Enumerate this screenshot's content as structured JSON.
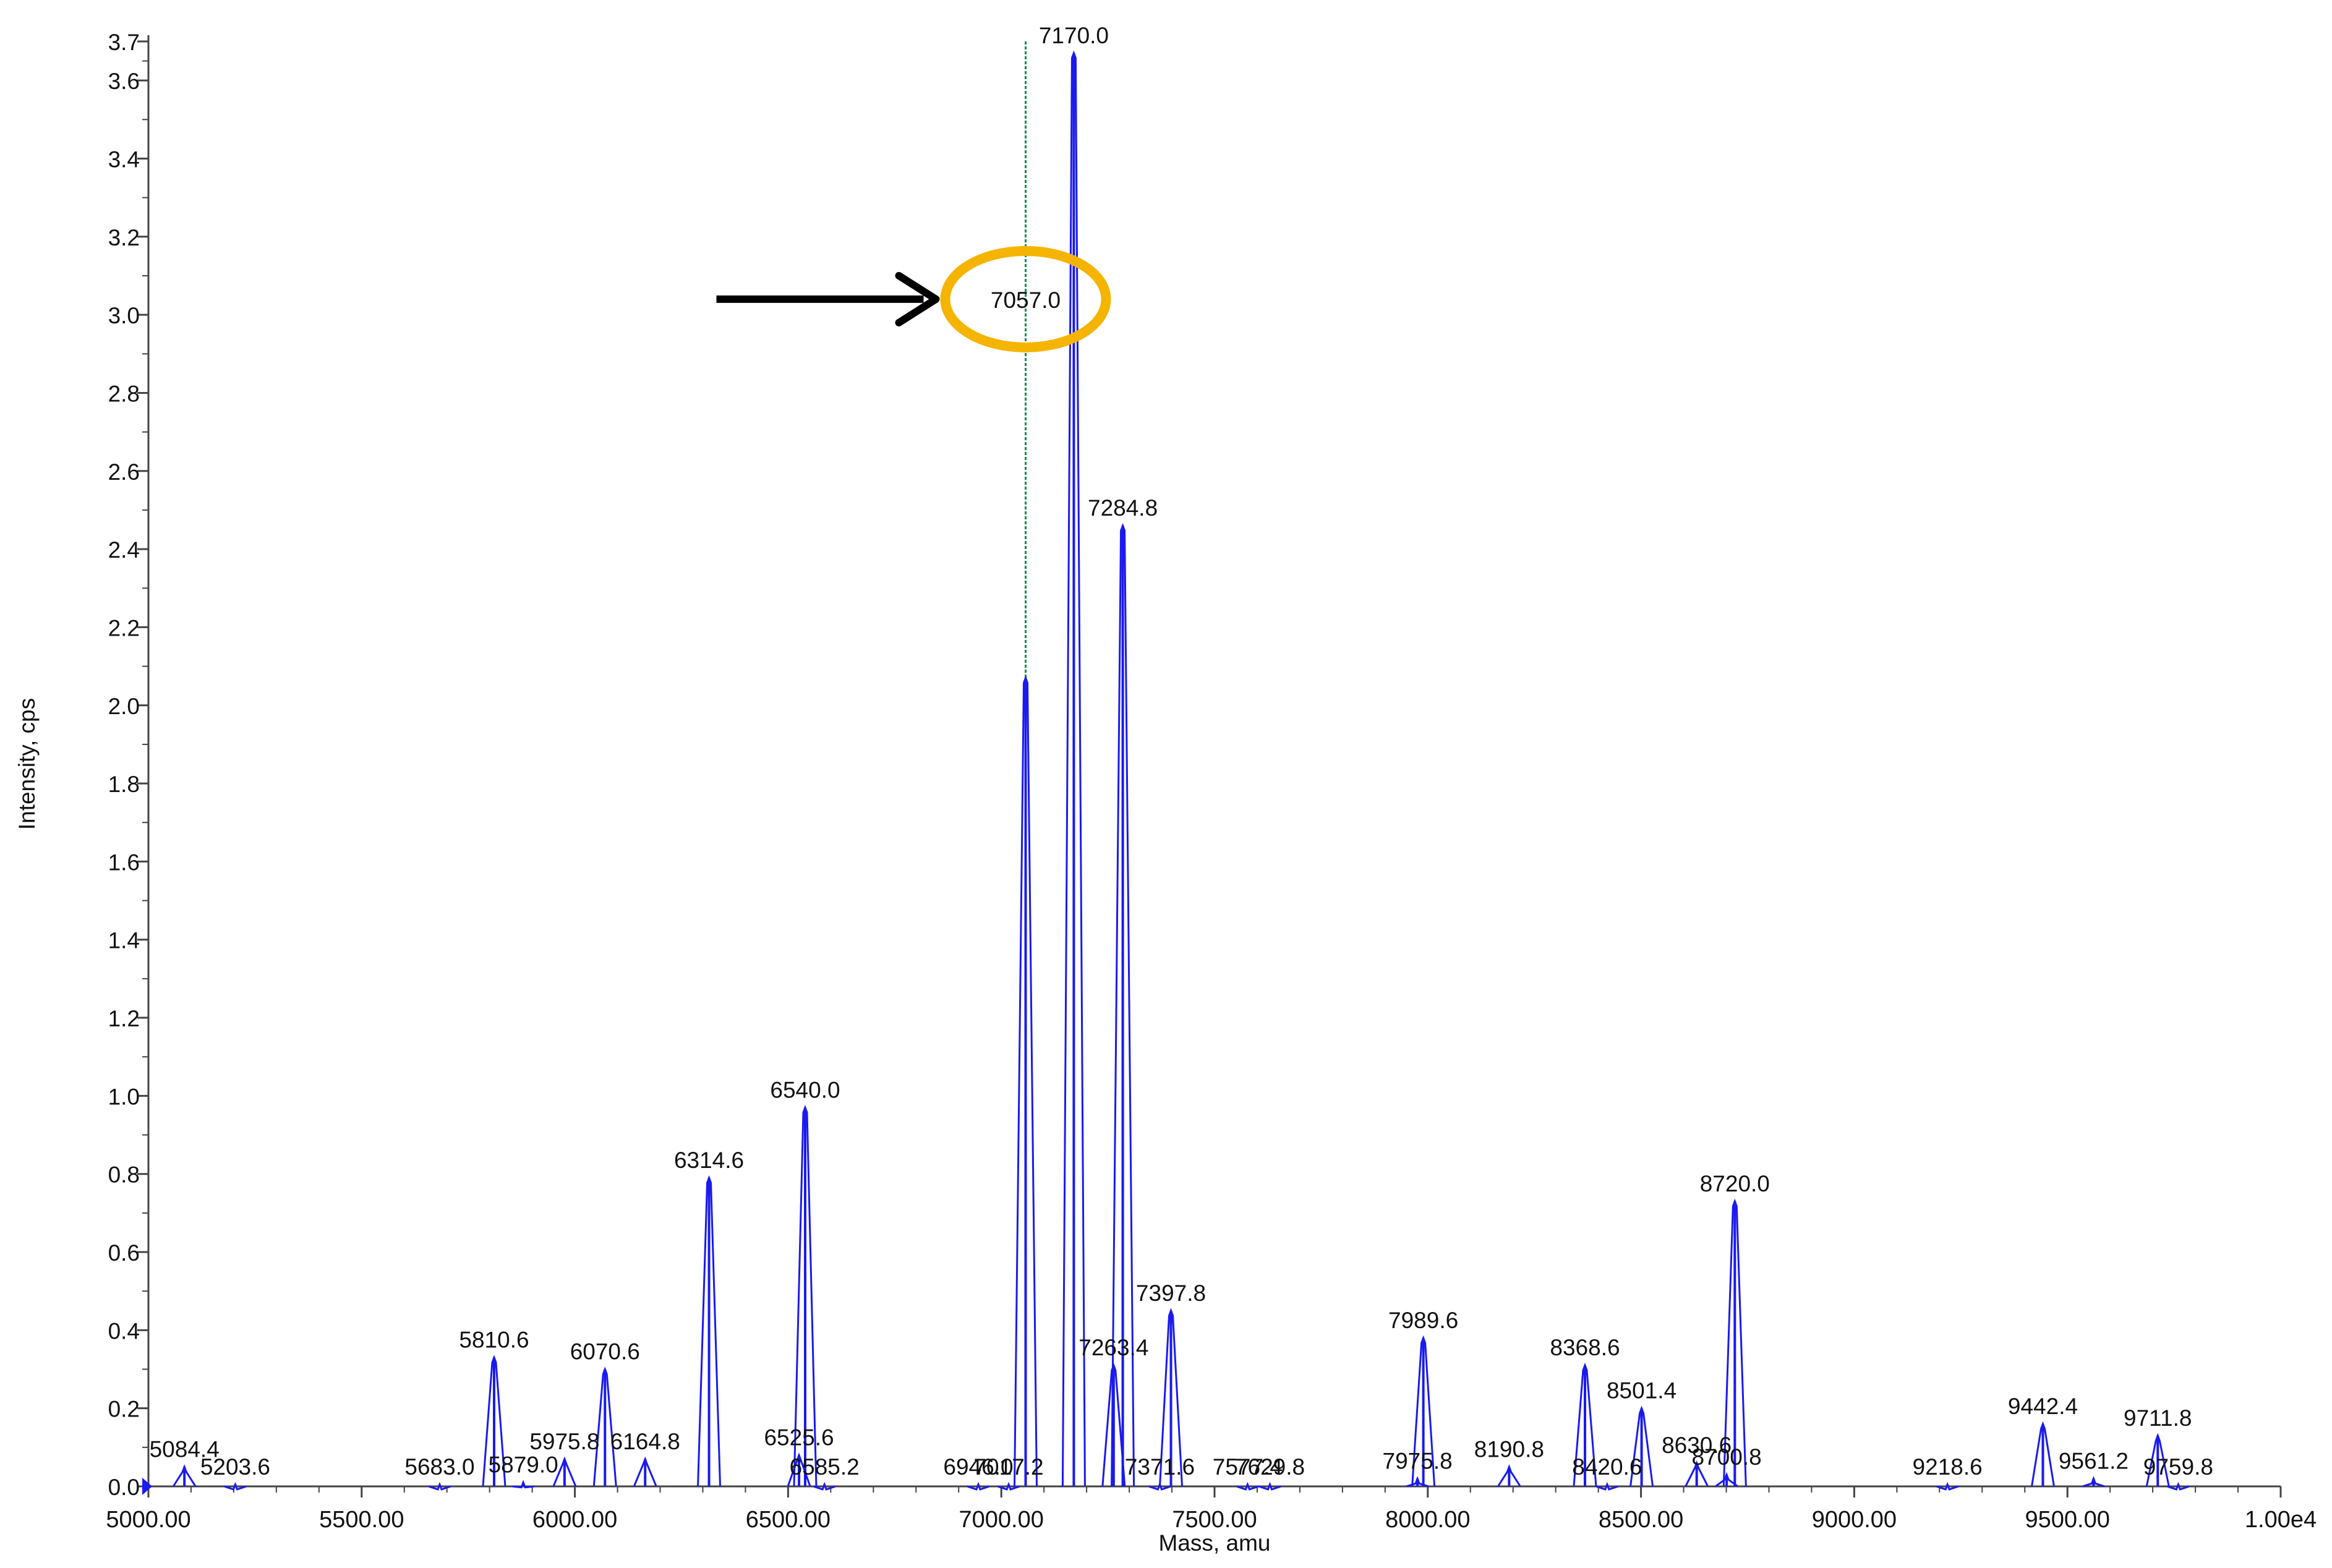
{
  "chart_data": {
    "type": "line",
    "title": "",
    "xlabel": "Mass, amu",
    "ylabel": "Intensity, cps",
    "xlim": [
      5000,
      10000
    ],
    "ylim": [
      0,
      3.7
    ],
    "x_ticks": [
      {
        "value": 5000,
        "label": "5000.00"
      },
      {
        "value": 5500,
        "label": "5500.00"
      },
      {
        "value": 6000,
        "label": "6000.00"
      },
      {
        "value": 6500,
        "label": "6500.00"
      },
      {
        "value": 7000,
        "label": "7000.00"
      },
      {
        "value": 7500,
        "label": "7500.00"
      },
      {
        "value": 8000,
        "label": "8000.00"
      },
      {
        "value": 8500,
        "label": "8500.00"
      },
      {
        "value": 9000,
        "label": "9000.00"
      },
      {
        "value": 9500,
        "label": "9500.00"
      },
      {
        "value": 10000,
        "label": "1.00e4"
      }
    ],
    "y_ticks": [
      {
        "value": 0.0,
        "label": "0.0"
      },
      {
        "value": 0.2,
        "label": "0.2"
      },
      {
        "value": 0.4,
        "label": "0.4"
      },
      {
        "value": 0.6,
        "label": "0.6"
      },
      {
        "value": 0.8,
        "label": "0.8"
      },
      {
        "value": 1.0,
        "label": "1.0"
      },
      {
        "value": 1.2,
        "label": "1.2"
      },
      {
        "value": 1.4,
        "label": "1.4"
      },
      {
        "value": 1.6,
        "label": "1.6"
      },
      {
        "value": 1.8,
        "label": "1.8"
      },
      {
        "value": 2.0,
        "label": "2.0"
      },
      {
        "value": 2.2,
        "label": "2.2"
      },
      {
        "value": 2.4,
        "label": "2.4"
      },
      {
        "value": 2.6,
        "label": "2.6"
      },
      {
        "value": 2.8,
        "label": "2.8"
      },
      {
        "value": 3.0,
        "label": "3.0"
      },
      {
        "value": 3.2,
        "label": "3.2"
      },
      {
        "value": 3.4,
        "label": "3.4"
      },
      {
        "value": 3.6,
        "label": "3.6"
      },
      {
        "value": 3.7,
        "label": "3.7"
      }
    ],
    "series": [
      {
        "color": "#1a1aee",
        "peaks": [
          {
            "mass": 5084.4,
            "intensity": 0.05,
            "label": "5084.4"
          },
          {
            "mass": 5203.6,
            "intensity": 0.005,
            "label": "5203.6"
          },
          {
            "mass": 5683.0,
            "intensity": 0.005,
            "label": "5683.0"
          },
          {
            "mass": 5810.6,
            "intensity": 0.33,
            "label": "5810.6"
          },
          {
            "mass": 5879.0,
            "intensity": 0.01,
            "label": "5879.0"
          },
          {
            "mass": 5975.8,
            "intensity": 0.07,
            "label": "5975.8"
          },
          {
            "mass": 6070.6,
            "intensity": 0.3,
            "label": "6070.6"
          },
          {
            "mass": 6164.8,
            "intensity": 0.07,
            "label": "6164.8"
          },
          {
            "mass": 6314.6,
            "intensity": 0.79,
            "label": "6314.6"
          },
          {
            "mass": 6525.6,
            "intensity": 0.08,
            "label": "6525.6"
          },
          {
            "mass": 6540.0,
            "intensity": 0.97,
            "label": "6540.0"
          },
          {
            "mass": 6585.2,
            "intensity": 0.005,
            "label": "6585.2"
          },
          {
            "mass": 6946.0,
            "intensity": 0.005,
            "label": "6946.0"
          },
          {
            "mass": 7017.2,
            "intensity": 0.005,
            "label": "7017.2"
          },
          {
            "mass": 7057.0,
            "intensity": 2.07,
            "label": "7057.0"
          },
          {
            "mass": 7170.0,
            "intensity": 3.67,
            "label": "7170.0"
          },
          {
            "mass": 7263.4,
            "intensity": 0.31,
            "label": "7263.4"
          },
          {
            "mass": 7284.8,
            "intensity": 2.46,
            "label": "7284.8"
          },
          {
            "mass": 7371.6,
            "intensity": 0.005,
            "label": "7371.6"
          },
          {
            "mass": 7397.8,
            "intensity": 0.45,
            "label": "7397.8"
          },
          {
            "mass": 7577.4,
            "intensity": 0.005,
            "label": "7577.4"
          },
          {
            "mass": 7629.8,
            "intensity": 0.005,
            "label": "7629.8"
          },
          {
            "mass": 7975.8,
            "intensity": 0.02,
            "label": "7975.8"
          },
          {
            "mass": 7989.6,
            "intensity": 0.38,
            "label": "7989.6"
          },
          {
            "mass": 8190.8,
            "intensity": 0.05,
            "label": "8190.8"
          },
          {
            "mass": 8368.6,
            "intensity": 0.31,
            "label": "8368.6"
          },
          {
            "mass": 8420.6,
            "intensity": 0.005,
            "label": "8420.6"
          },
          {
            "mass": 8501.4,
            "intensity": 0.2,
            "label": "8501.4"
          },
          {
            "mass": 8630.6,
            "intensity": 0.06,
            "label": "8630.6"
          },
          {
            "mass": 8700.8,
            "intensity": 0.03,
            "label": "8700.8"
          },
          {
            "mass": 8720.0,
            "intensity": 0.73,
            "label": "8720.0"
          },
          {
            "mass": 9218.6,
            "intensity": 0.005,
            "label": "9218.6"
          },
          {
            "mass": 9442.4,
            "intensity": 0.16,
            "label": "9442.4"
          },
          {
            "mass": 9561.2,
            "intensity": 0.02,
            "label": "9561.2"
          },
          {
            "mass": 9711.8,
            "intensity": 0.13,
            "label": "9711.8"
          },
          {
            "mass": 9759.8,
            "intensity": 0.005,
            "label": "9759.8"
          }
        ]
      }
    ],
    "cursor_line": {
      "mass": 7057.0,
      "color": "#0a8f4a"
    },
    "highlight": {
      "label": "7057.0",
      "circle_color": "#f5b400",
      "arrow_color": "#000000"
    },
    "grid": false,
    "legend": "none"
  }
}
